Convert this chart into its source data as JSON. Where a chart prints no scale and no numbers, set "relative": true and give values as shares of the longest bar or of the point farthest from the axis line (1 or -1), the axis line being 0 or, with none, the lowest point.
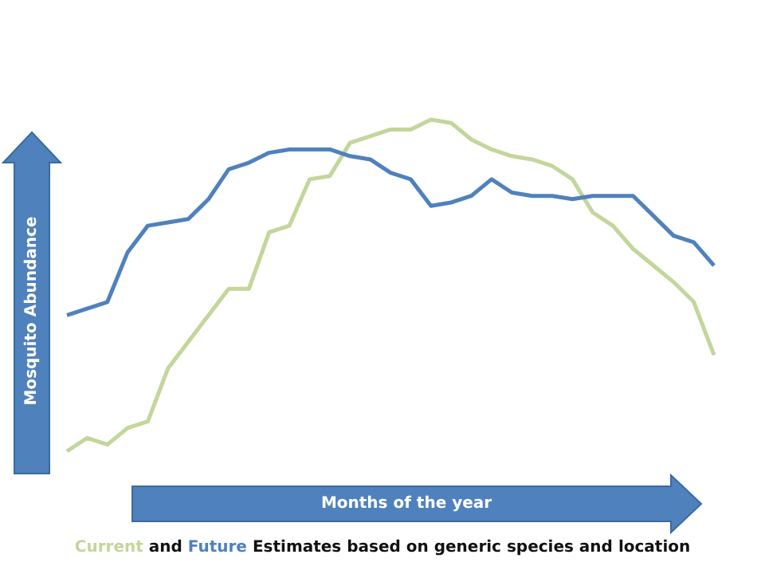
{
  "chart_data": {
    "type": "line",
    "relative": true,
    "xlabel": "Months of the year",
    "ylabel": "Mosquito Abundance",
    "annotations": [
      "and",
      "Estimates based on generic species and location"
    ],
    "categories": [
      null,
      null,
      null,
      null,
      null,
      null,
      null,
      null,
      null,
      null,
      null,
      null,
      null,
      null,
      null,
      null,
      null,
      null,
      null,
      null,
      null,
      null,
      null,
      null,
      null,
      null,
      null,
      null,
      null,
      null,
      null,
      null,
      null
    ],
    "series": [
      {
        "name": "Current",
        "color": "#c3d69b",
        "values": [
          0,
          0.04,
          0.02,
          0.07,
          0.09,
          0.25,
          0.33,
          0.41,
          0.49,
          0.49,
          0.66,
          0.68,
          0.82,
          0.83,
          0.93,
          0.95,
          0.97,
          0.97,
          1,
          0.99,
          0.94,
          0.91,
          0.89,
          0.88,
          0.86,
          0.82,
          0.72,
          0.68,
          0.61,
          0.56,
          0.51,
          0.45,
          0.29
        ]
      },
      {
        "name": "Future",
        "color": "#4f81bd",
        "values": [
          0.41,
          0.43,
          0.45,
          0.6,
          0.68,
          0.69,
          0.7,
          0.76,
          0.85,
          0.87,
          0.9,
          0.91,
          0.91,
          0.91,
          0.89,
          0.88,
          0.84,
          0.82,
          0.74,
          0.75,
          0.77,
          0.82,
          0.78,
          0.77,
          0.77,
          0.76,
          0.77,
          0.77,
          0.77,
          0.71,
          0.65,
          0.63,
          0.56
        ]
      }
    ]
  }
}
